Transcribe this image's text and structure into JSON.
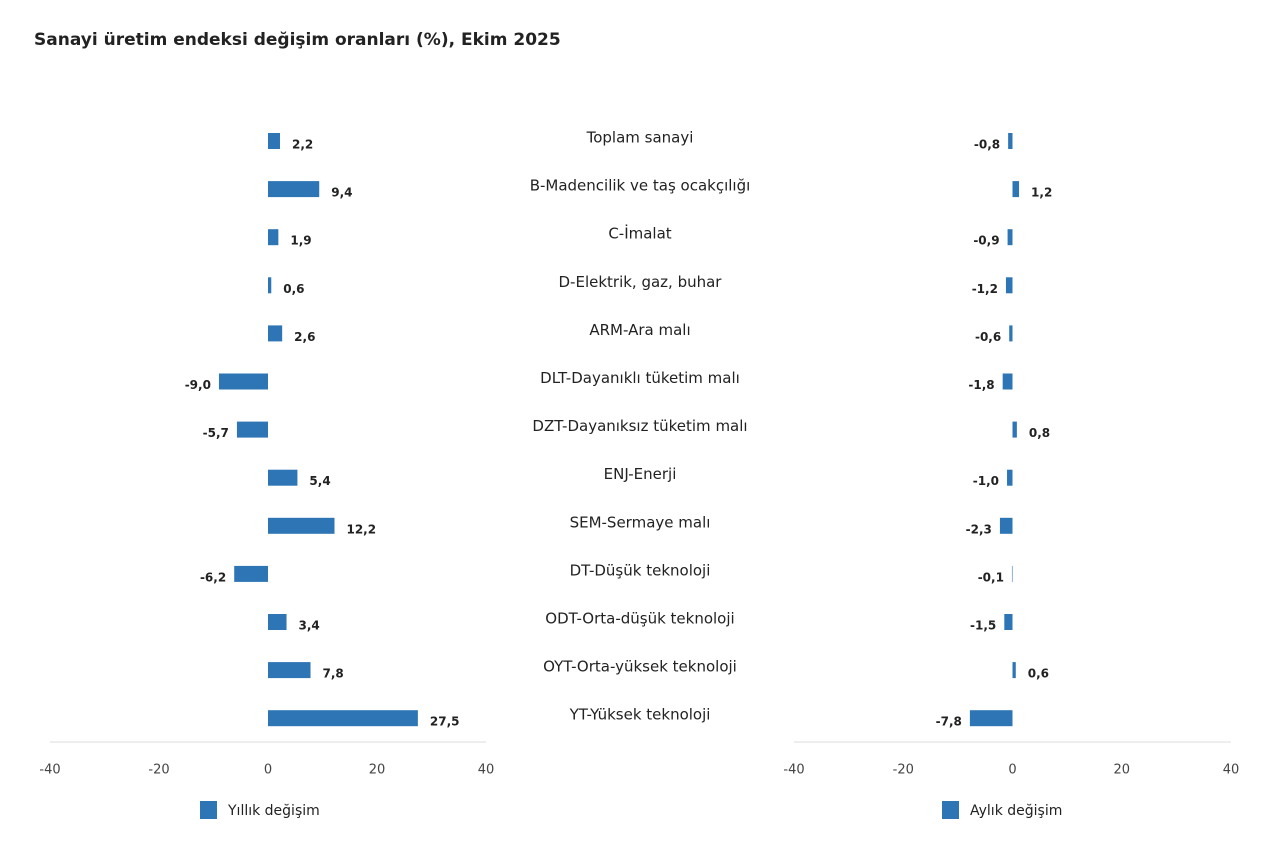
{
  "chart_data": {
    "type": "bar",
    "title": "Sanayi üretim endeksi değişim oranları (%), Ekim 2025",
    "categories": [
      "Toplam sanayi",
      "B-Madencilik ve taş ocakçılığı",
      "C-İmalat",
      "D-Elektrik, gaz, buhar",
      "ARM-Ara malı",
      "DLT-Dayanıklı tüketim malı",
      "DZT-Dayanıksız tüketim malı",
      "ENJ-Enerji",
      "SEM-Sermaye malı",
      "DT-Düşük teknoloji",
      "ODT-Orta-düşük teknoloji",
      "OYT-Orta-yüksek teknoloji",
      "YT-Yüksek teknoloji"
    ],
    "series": [
      {
        "name": "Yıllık değişim",
        "color": "#2e75b6",
        "values": [
          2.2,
          9.4,
          1.9,
          0.6,
          2.6,
          -9.0,
          -5.7,
          5.4,
          12.2,
          -6.2,
          3.4,
          7.8,
          27.5
        ],
        "value_labels": [
          "2,2",
          "9,4",
          "1,9",
          "0,6",
          "2,6",
          "-9,0",
          "-5,7",
          "5,4",
          "12,2",
          "-6,2",
          "3,4",
          "7,8",
          "27,5"
        ]
      },
      {
        "name": "Aylık değişim",
        "color": "#2e75b6",
        "values": [
          -0.8,
          1.2,
          -0.9,
          -1.2,
          -0.6,
          -1.8,
          0.8,
          -1.0,
          -2.3,
          -0.1,
          -1.5,
          0.6,
          -7.8
        ],
        "value_labels": [
          "-0,8",
          "1,2",
          "-0,9",
          "-1,2",
          "-0,6",
          "-1,8",
          "0,8",
          "-1,0",
          "-2,3",
          "-0,1",
          "-1,5",
          "0,6",
          "-7,8"
        ]
      }
    ],
    "xlim": [
      -40,
      40
    ],
    "xticks": [
      -40,
      -20,
      0,
      20,
      40
    ]
  }
}
